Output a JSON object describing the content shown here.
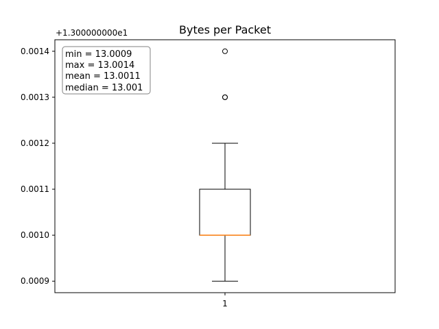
{
  "chart_data": {
    "type": "boxplot",
    "title": "Bytes per Packet",
    "xlabel": "",
    "ylabel": "",
    "offset_label": "+1.300000000e1",
    "x_tick_labels": [
      "1"
    ],
    "y_ticks": [
      0.0009,
      0.001,
      0.0011,
      0.0012,
      0.0013,
      0.0014
    ],
    "y_tick_labels": [
      "0.0009",
      "0.0010",
      "0.0011",
      "0.0012",
      "0.0013",
      "0.0014"
    ],
    "ylim": [
      0.000875,
      0.001425
    ],
    "box": {
      "whisker_low": 0.0009,
      "q1": 0.001,
      "median": 0.001,
      "q3": 0.0011,
      "whisker_high": 0.0012,
      "outliers": [
        0.0013,
        0.0013,
        0.0014
      ]
    },
    "stats_lines": [
      "min = 13.0009",
      "max = 13.0014",
      "mean = 13.0011",
      "median = 13.001"
    ],
    "colors": {
      "median": "#ff7f0e",
      "box": "#000000",
      "stats_box_border": "#808080"
    }
  }
}
